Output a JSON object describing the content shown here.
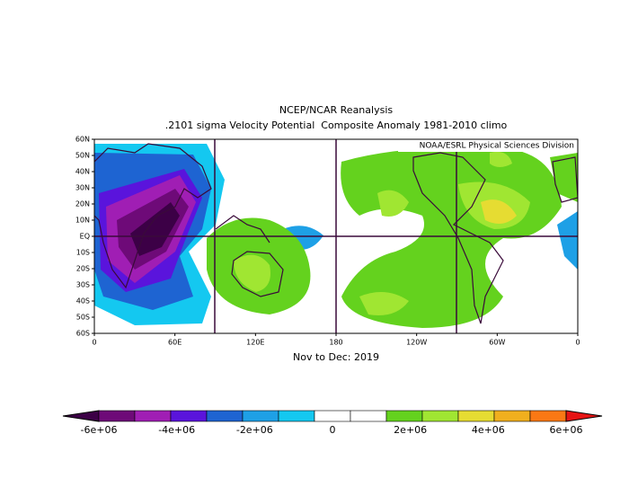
{
  "title": "NCEP/NCAR Reanalysis",
  "subtitle": ".2101 sigma Velocity Potential  Composite Anomaly 1981-2010 climo",
  "credit": "NOAA/ESRL Physical Sciences Division",
  "period": "Nov to Dec: 2019",
  "lat_labels": [
    "60N",
    "50N",
    "40N",
    "30N",
    "20N",
    "10N",
    "EQ",
    "10S",
    "20S",
    "30S",
    "40S",
    "50S",
    "60S"
  ],
  "lon_labels": [
    "0",
    "60E",
    "120E",
    "180",
    "120W",
    "60W",
    "0"
  ],
  "colorbar": {
    "labels": [
      "-6e+06",
      "-4e+06",
      "-2e+06",
      "0",
      "2e+06",
      "4e+06",
      "6e+06"
    ],
    "colors": [
      "#3c0046",
      "#6e0a78",
      "#a01eb4",
      "#5a14dc",
      "#1e64d2",
      "#1ea0e6",
      "#14c8f0",
      "#ffffff",
      "#ffffff",
      "#64d21e",
      "#a0e632",
      "#e6dc32",
      "#f0af1e",
      "#fa7814",
      "#e61414"
    ]
  }
}
